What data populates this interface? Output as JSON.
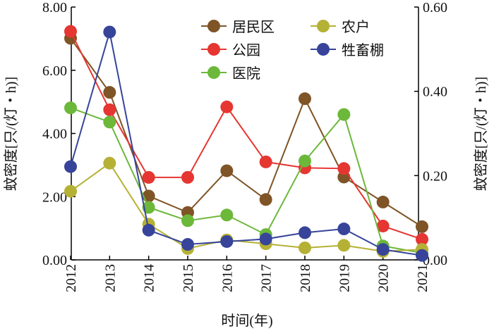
{
  "chart_data": {
    "type": "line",
    "xlabel": "时间(年)",
    "ylabel": "蚊密度[只/(灯・h)]",
    "ylabel_right": "蚊密度[只/(灯・h)]",
    "x": [
      "2012",
      "2013",
      "2014",
      "2015",
      "2016",
      "2017",
      "2018",
      "2019",
      "2020",
      "2021"
    ],
    "ylim": [
      0,
      8
    ],
    "ylim_right": [
      0,
      0.6
    ],
    "yticks": [
      "0.00",
      "2.00",
      "4.00",
      "6.00",
      "8.00"
    ],
    "yticks_right": [
      "0.00",
      "0.20",
      "0.40",
      "0.60"
    ],
    "legend_position": "top-right",
    "series": [
      {
        "name": "居民区",
        "color": "#7f5426",
        "values": [
          7.01,
          5.3,
          2.02,
          1.5,
          2.82,
          1.91,
          5.1,
          2.62,
          1.83,
          1.05
        ]
      },
      {
        "name": "公园",
        "color": "#e53632",
        "values": [
          7.23,
          4.75,
          2.61,
          2.61,
          4.84,
          3.1,
          2.91,
          2.89,
          1.07,
          0.65
        ]
      },
      {
        "name": "医院",
        "color": "#6cb83a",
        "values": [
          4.81,
          4.36,
          1.66,
          1.24,
          1.42,
          0.8,
          3.13,
          4.6,
          0.44,
          0.22
        ]
      },
      {
        "name": "农户",
        "color": "#b5b135",
        "values": [
          2.17,
          3.06,
          1.13,
          0.36,
          0.63,
          0.51,
          0.38,
          0.46,
          0.27,
          0.33
        ]
      },
      {
        "name": "牲畜棚",
        "color": "#37449a",
        "values": [
          2.95,
          7.21,
          0.94,
          0.49,
          0.58,
          0.66,
          0.86,
          0.98,
          0.33,
          0.14
        ]
      }
    ]
  }
}
